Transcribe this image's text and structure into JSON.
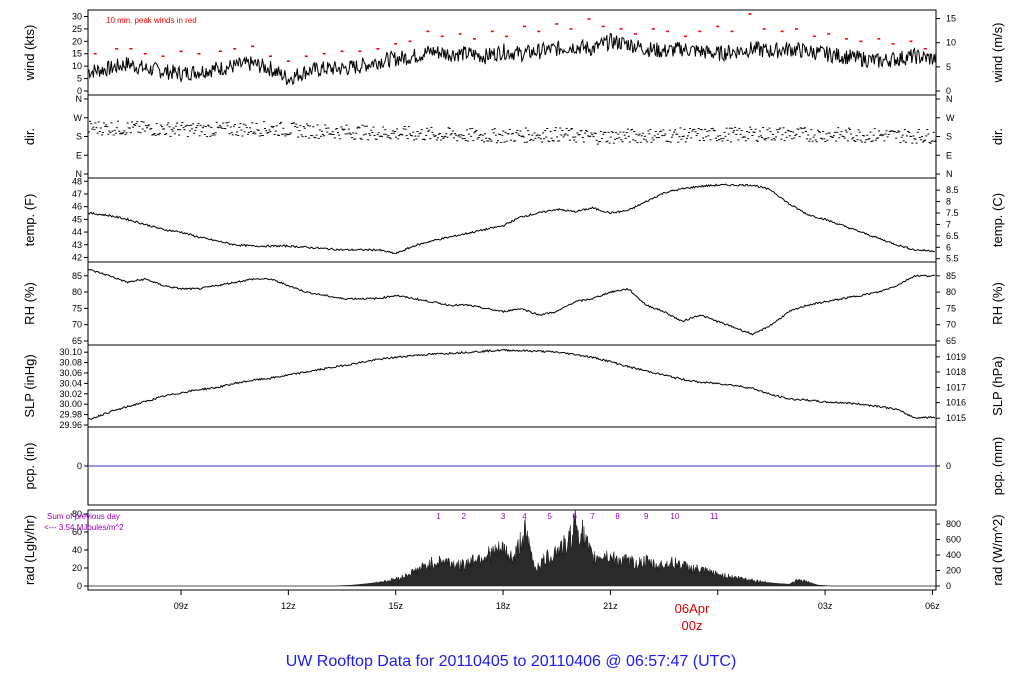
{
  "title": "UW Rooftop Data for 20110405  to  20110406 @ 06:57:47  (UTC)",
  "colors": {
    "title": "#1a1aff",
    "peak": "#ff0000",
    "pcp": "#3333cc",
    "annot": "#9a00c8",
    "date": "#dd0000"
  },
  "x_axis": {
    "range_hours": [
      6.4,
      30.1
    ],
    "ticks": [
      {
        "h": 9,
        "label": "09z"
      },
      {
        "h": 12,
        "label": "12z"
      },
      {
        "h": 15,
        "label": "15z"
      },
      {
        "h": 18,
        "label": "18z"
      },
      {
        "h": 21,
        "label": "21z"
      },
      {
        "h": 24,
        "label": ""
      },
      {
        "h": 27,
        "label": "03z"
      },
      {
        "h": 30,
        "label": "06z"
      }
    ],
    "date_label": "06Apr",
    "date_sublabel": "00z"
  },
  "chart_data": [
    {
      "type": "line",
      "name": "wind",
      "ylabel_left": "wind (kts)",
      "ylabel_right": "wind (m/s)",
      "annotation": "10 min. peak winds in red",
      "ylim": [
        0,
        31
      ],
      "left_ticks": [
        "0",
        "5",
        "10",
        "15",
        "20",
        "25",
        "30"
      ],
      "left_tick_values": [
        0,
        5,
        10,
        15,
        20,
        25,
        30
      ],
      "right_ticks": [
        "0",
        "5",
        "10",
        "15"
      ],
      "right_tick_values": [
        0,
        9.72,
        19.44,
        29.16
      ],
      "x": [
        6.5,
        7,
        7.5,
        8,
        8.5,
        9,
        9.5,
        10,
        10.5,
        11,
        11.5,
        12,
        12.5,
        13,
        13.5,
        14,
        14.5,
        15,
        15.5,
        16,
        16.5,
        17,
        17.5,
        18,
        18.5,
        19,
        19.5,
        20,
        20.5,
        21,
        21.5,
        22,
        22.5,
        23,
        23.5,
        24,
        24.5,
        25,
        25.5,
        26,
        26.5,
        27,
        27.5,
        28,
        28.5,
        29,
        29.5,
        30
      ],
      "y": [
        8,
        9,
        11,
        9,
        8,
        7,
        8,
        9,
        10,
        11,
        9,
        5,
        8,
        9,
        9,
        10,
        12,
        13,
        14,
        16,
        15,
        15,
        14,
        16,
        15,
        16,
        17,
        18,
        17,
        20,
        19,
        17,
        16,
        17,
        16,
        15,
        16,
        17,
        16,
        17,
        16,
        15,
        14,
        13,
        12,
        13,
        14,
        13
      ],
      "peaks_x": [
        6.6,
        7.2,
        7.6,
        8.0,
        8.5,
        9.0,
        9.5,
        10.1,
        10.5,
        11.0,
        11.5,
        12.0,
        12.5,
        13.0,
        13.5,
        14.0,
        14.5,
        15.0,
        15.4,
        15.9,
        16.3,
        16.8,
        17.2,
        17.7,
        18.1,
        18.6,
        19.0,
        19.5,
        19.9,
        20.4,
        20.8,
        21.3,
        21.7,
        22.2,
        22.6,
        23.1,
        23.5,
        24.0,
        24.4,
        24.9,
        25.3,
        25.8,
        26.2,
        26.7,
        27.1,
        27.6,
        28.0,
        28.5,
        28.9,
        29.4,
        29.8
      ],
      "peaks_y": [
        15,
        17,
        17,
        15,
        14,
        16,
        15,
        16,
        17,
        18,
        14,
        12,
        14,
        15,
        16,
        16,
        17,
        19,
        20,
        24,
        22,
        23,
        21,
        24,
        22,
        26,
        24,
        27,
        25,
        29,
        26,
        25,
        23,
        25,
        24,
        22,
        24,
        26,
        24,
        31,
        25,
        24,
        25,
        22,
        23,
        21,
        20,
        21,
        19,
        20,
        17
      ]
    },
    {
      "type": "scatter",
      "name": "direction",
      "ylabel_left": "dir.",
      "ylabel_right": "dir.",
      "ylim": [
        0,
        360
      ],
      "left_ticks": [
        "N",
        "W",
        "S",
        "E",
        "N"
      ],
      "left_tick_values": [
        360,
        270,
        180,
        90,
        0
      ],
      "right_ticks": [
        "N",
        "W",
        "S",
        "E",
        "N"
      ],
      "right_tick_values": [
        360,
        270,
        180,
        90,
        0
      ],
      "x": [
        6.5,
        7.5,
        8.5,
        9.5,
        10.5,
        11.5,
        12.5,
        13.5,
        14.5,
        15.5,
        16.5,
        17.5,
        18.5,
        19.5,
        20.5,
        21.5,
        22.5,
        23.5,
        24.5,
        25.5,
        26.5,
        27.5,
        28.5,
        29.5
      ],
      "y": [
        225,
        222,
        218,
        215,
        218,
        220,
        210,
        205,
        200,
        195,
        190,
        185,
        188,
        192,
        180,
        185,
        188,
        190,
        192,
        195,
        192,
        190,
        188,
        185
      ]
    },
    {
      "type": "line",
      "name": "temperature",
      "ylabel_left": "temp. (F)",
      "ylabel_right": "temp. (C)",
      "ylim": [
        41.8,
        48.1
      ],
      "left_ticks": [
        "42",
        "43",
        "44",
        "45",
        "46",
        "47",
        "48"
      ],
      "left_tick_values": [
        42,
        43,
        44,
        45,
        46,
        47,
        48
      ],
      "right_ticks": [
        "5.5",
        "6",
        "6.5",
        "7",
        "7.5",
        "8",
        "8.5"
      ],
      "right_tick_values": [
        41.9,
        42.8,
        43.7,
        44.6,
        45.5,
        46.4,
        47.3
      ],
      "x": [
        6.4,
        7,
        7.5,
        8,
        8.5,
        9,
        9.5,
        10,
        10.5,
        11,
        11.5,
        12,
        12.5,
        13,
        13.5,
        14,
        14.5,
        15,
        15.5,
        16,
        16.5,
        17,
        17.5,
        18,
        18.5,
        19,
        19.5,
        20,
        20.5,
        21,
        21.5,
        22,
        22.5,
        23,
        23.5,
        24,
        24.5,
        25,
        25.5,
        26,
        26.5,
        27,
        27.5,
        28,
        28.5,
        29,
        29.5,
        30.1
      ],
      "y": [
        45.5,
        45.3,
        45.0,
        44.6,
        44.2,
        44.0,
        43.6,
        43.3,
        43.0,
        42.9,
        42.9,
        42.9,
        42.8,
        42.7,
        42.6,
        42.6,
        42.6,
        42.3,
        42.9,
        43.3,
        43.6,
        43.9,
        44.2,
        44.5,
        45.2,
        45.5,
        45.8,
        45.6,
        45.9,
        45.5,
        45.7,
        46.4,
        47.1,
        47.4,
        47.6,
        47.7,
        47.7,
        47.7,
        47.3,
        46.2,
        45.4,
        45.0,
        44.5,
        44.0,
        43.5,
        43.0,
        42.6,
        42.5
      ]
    },
    {
      "type": "line",
      "name": "relative-humidity",
      "ylabel_left": "RH (%)",
      "ylabel_right": "RH (%)",
      "ylim": [
        65,
        88
      ],
      "left_ticks": [
        "65",
        "70",
        "75",
        "80",
        "85"
      ],
      "left_tick_values": [
        65,
        70,
        75,
        80,
        85
      ],
      "right_ticks": [
        "65",
        "70",
        "75",
        "80",
        "85"
      ],
      "right_tick_values": [
        65,
        70,
        75,
        80,
        85
      ],
      "x": [
        6.4,
        7,
        7.5,
        8,
        8.5,
        9,
        9.5,
        10,
        10.5,
        11,
        11.5,
        12,
        12.5,
        13,
        13.5,
        14,
        14.5,
        15,
        15.5,
        16,
        16.5,
        17,
        17.5,
        18,
        18.5,
        19,
        19.5,
        20,
        20.5,
        21,
        21.5,
        22,
        22.5,
        23,
        23.5,
        24,
        24.5,
        25,
        25.5,
        26,
        26.5,
        27,
        27.5,
        28,
        28.5,
        29,
        29.5,
        30.1
      ],
      "y": [
        87,
        85,
        83,
        84,
        82,
        81,
        81,
        82,
        83,
        84,
        84,
        82,
        80,
        79,
        78,
        78,
        78,
        79,
        78,
        77,
        76,
        76,
        75,
        74,
        75,
        73,
        74,
        77,
        78,
        80,
        81,
        76,
        74,
        71,
        73,
        71,
        69,
        67,
        70,
        74,
        76,
        77,
        78,
        79,
        80,
        82,
        85,
        85
      ]
    },
    {
      "type": "line",
      "name": "sea-level-pressure",
      "ylabel_left": "SLP (inHg)",
      "ylabel_right": "SLP (hPa)",
      "ylim": [
        29.96,
        30.11
      ],
      "left_ticks": [
        "29.96",
        "29.98",
        "30.00",
        "30.02",
        "30.04",
        "30.06",
        "30.08",
        "30.10"
      ],
      "left_tick_values": [
        29.96,
        29.98,
        30.0,
        30.02,
        30.04,
        30.06,
        30.08,
        30.1
      ],
      "right_ticks": [
        "1015",
        "1016",
        "1017",
        "1018",
        "1019"
      ],
      "right_tick_values": [
        29.973,
        30.003,
        30.032,
        30.062,
        30.091
      ],
      "x": [
        6.4,
        7,
        7.5,
        8,
        8.5,
        9,
        9.5,
        10,
        10.5,
        11,
        11.5,
        12,
        12.5,
        13,
        13.5,
        14,
        14.5,
        15,
        15.5,
        16,
        16.5,
        17,
        17.5,
        18,
        18.5,
        19,
        19.5,
        20,
        20.5,
        21,
        21.5,
        22,
        22.5,
        23,
        23.5,
        24,
        24.5,
        25,
        25.5,
        26,
        26.5,
        27,
        27.5,
        28,
        28.5,
        29,
        29.5,
        30.1
      ],
      "y": [
        29.97,
        29.985,
        29.995,
        30.005,
        30.015,
        30.022,
        30.028,
        30.032,
        30.04,
        30.046,
        30.05,
        30.056,
        30.062,
        30.068,
        30.074,
        30.08,
        30.086,
        30.09,
        30.094,
        30.096,
        30.098,
        30.1,
        30.102,
        30.104,
        30.103,
        30.102,
        30.1,
        30.096,
        30.09,
        30.082,
        30.072,
        30.064,
        30.056,
        30.048,
        30.042,
        30.04,
        30.036,
        30.03,
        30.018,
        30.01,
        30.008,
        30.004,
        30.003,
        30.0,
        29.996,
        29.99,
        29.974,
        29.975
      ]
    },
    {
      "type": "line",
      "name": "precipitation",
      "ylabel_left": "pcp. (in)",
      "ylabel_right": "pcp. (mm)",
      "ylim": [
        -1,
        1
      ],
      "left_ticks": [
        "0"
      ],
      "left_tick_values": [
        0
      ],
      "right_ticks": [
        "0"
      ],
      "right_tick_values": [
        0
      ],
      "x": [
        6.4,
        30.1
      ],
      "y": [
        0,
        0
      ]
    },
    {
      "type": "area",
      "name": "radiation",
      "ylabel_left": "rad (Lgly/hr)",
      "ylabel_right": "rad (W/m^2)",
      "annotation_line1": "Sum of previous day",
      "annotation_line2": "<--- 3.54 MJoules/m^2",
      "ylim": [
        0,
        80
      ],
      "left_ticks": [
        "0",
        "20",
        "40",
        "60",
        "80"
      ],
      "left_tick_values": [
        0,
        20,
        40,
        60,
        80
      ],
      "right_ticks": [
        "0",
        "200",
        "400",
        "600",
        "800"
      ],
      "right_tick_values": [
        0,
        17.2,
        34.4,
        51.6,
        68.8
      ],
      "markers": [
        {
          "h": 16.2,
          "label": "1"
        },
        {
          "h": 16.9,
          "label": "2"
        },
        {
          "h": 18.0,
          "label": "3"
        },
        {
          "h": 18.6,
          "label": "4"
        },
        {
          "h": 19.3,
          "label": "5"
        },
        {
          "h": 20.0,
          "label": "6"
        },
        {
          "h": 20.5,
          "label": "7"
        },
        {
          "h": 21.2,
          "label": "8"
        },
        {
          "h": 22.0,
          "label": "9"
        },
        {
          "h": 22.8,
          "label": "10"
        },
        {
          "h": 23.9,
          "label": "11"
        }
      ],
      "x": [
        6.4,
        13.3,
        13.8,
        14.3,
        14.8,
        15.2,
        15.6,
        16.0,
        16.4,
        16.8,
        17.2,
        17.6,
        18.0,
        18.3,
        18.6,
        18.9,
        19.2,
        19.5,
        19.8,
        20.0,
        20.2,
        20.5,
        20.8,
        21.1,
        21.4,
        21.7,
        22.0,
        22.3,
        22.6,
        22.9,
        23.2,
        23.5,
        23.8,
        24.1,
        24.4,
        24.8,
        25.2,
        25.6,
        26.0,
        26.2,
        26.5,
        26.8,
        27.2,
        30.1
      ],
      "y": [
        0,
        0,
        1,
        3,
        6,
        10,
        18,
        25,
        28,
        22,
        30,
        35,
        40,
        30,
        60,
        20,
        30,
        40,
        45,
        70,
        60,
        30,
        35,
        30,
        28,
        25,
        27,
        22,
        25,
        25,
        20,
        18,
        15,
        12,
        10,
        8,
        5,
        3,
        2,
        7,
        5,
        1,
        0,
        0
      ]
    }
  ]
}
